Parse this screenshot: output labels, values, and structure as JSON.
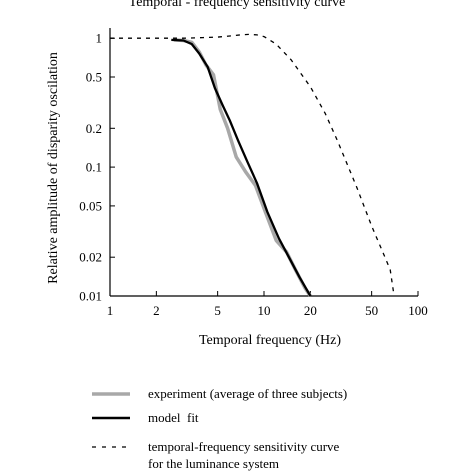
{
  "chart_data": {
    "type": "line",
    "title": "Temporal - frequency sensitivity curve",
    "xlabel": "Temporal frequency (Hz)",
    "ylabel": "Relative amplitude of disparity oscilation",
    "x_scale": "log",
    "y_scale": "log",
    "xlim": [
      1,
      100
    ],
    "ylim": [
      0.01,
      1.2
    ],
    "x_ticks": [
      1,
      2,
      5,
      10,
      20,
      50,
      100
    ],
    "x_tick_labels": [
      "1",
      "2",
      "5",
      "10",
      "20",
      "50",
      "100"
    ],
    "y_ticks": [
      1,
      0.5,
      0.2,
      0.1,
      0.05,
      0.02,
      0.01
    ],
    "y_tick_labels": [
      "1",
      "0.5",
      "0.2",
      "0.1",
      "0.05",
      "0.02",
      "0.01"
    ],
    "grid": false,
    "legend_position": "bottom",
    "series": [
      {
        "name": "experiment (average of three subjects)",
        "color": "#a8a8a8",
        "style": "solid",
        "x": [
          2.6,
          3.0,
          3.4,
          3.8,
          4.2,
          4.7,
          5.2,
          5.8,
          6.6,
          7.6,
          8.8,
          10.2,
          12.0,
          14.0,
          16.0,
          18.5,
          20.0
        ],
        "y": [
          0.97,
          0.96,
          0.93,
          0.78,
          0.62,
          0.52,
          0.28,
          0.2,
          0.12,
          0.092,
          0.072,
          0.045,
          0.027,
          0.022,
          0.016,
          0.0115,
          0.01
        ]
      },
      {
        "name": "model  fit",
        "color": "#000000",
        "style": "solid",
        "x": [
          2.5,
          3.0,
          3.4,
          3.8,
          4.3,
          4.8,
          5.4,
          6.0,
          6.8,
          7.8,
          9.0,
          10.5,
          12.5,
          14.5,
          17.0,
          20.0
        ],
        "y": [
          0.97,
          0.96,
          0.9,
          0.76,
          0.6,
          0.41,
          0.3,
          0.23,
          0.16,
          0.11,
          0.075,
          0.045,
          0.028,
          0.02,
          0.014,
          0.01
        ]
      },
      {
        "name": "temporal-frequency sensitivity curve",
        "name_line2": "for the luminance system",
        "color": "#000000",
        "style": "dashed",
        "x": [
          1,
          2,
          3,
          4,
          5,
          6,
          7,
          8,
          9,
          10,
          12,
          15,
          20,
          25,
          30,
          40,
          50,
          60,
          66,
          70
        ],
        "y": [
          1.0,
          1.0,
          1.0,
          1.01,
          1.02,
          1.04,
          1.06,
          1.07,
          1.06,
          1.03,
          0.9,
          0.68,
          0.42,
          0.26,
          0.16,
          0.07,
          0.035,
          0.021,
          0.016,
          0.01
        ]
      }
    ]
  }
}
